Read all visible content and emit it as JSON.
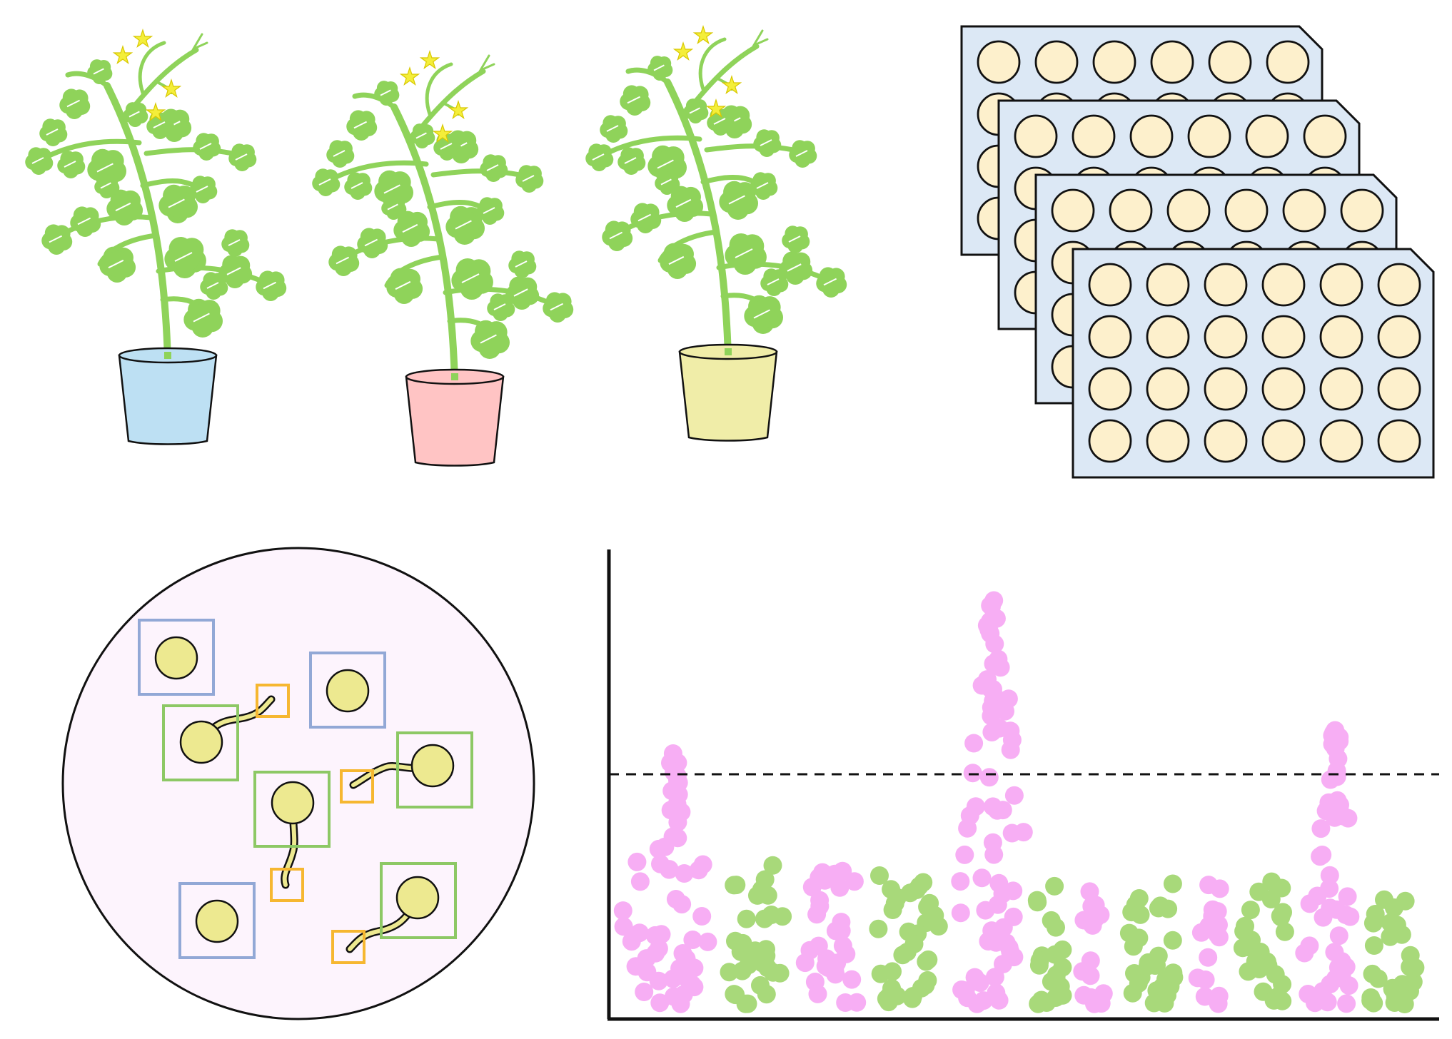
{
  "colors": {
    "stem": "#8fd35a",
    "leaf": "#8fd35a",
    "flower": "#f4ee3a",
    "flower_outline": "#d8c800",
    "pot_blue": "#bde0f3",
    "pot_pink": "#ffc4c4",
    "pot_yellow": "#f0eda8",
    "plate_fill": "#dce8f5",
    "well_fill": "#fdf0cc",
    "dish_fill": "#fdf4fd",
    "cell_fill": "#ede990",
    "box_blue": "#92a8d6",
    "box_green": "#8dc865",
    "box_orange": "#f6b731",
    "tube_fill": "#ede990",
    "point_pink": "#f7aef4",
    "point_green": "#a8d97a",
    "outline": "#111111"
  },
  "plants": [
    {
      "name": "plant-blue-pot",
      "pot": "pot_blue"
    },
    {
      "name": "plant-pink-pot",
      "pot": "pot_pink"
    },
    {
      "name": "plant-yellow-pot",
      "pot": "pot_yellow"
    }
  ],
  "plates": {
    "count": 4,
    "rows": 4,
    "cols": 6
  },
  "dish": {
    "cells": [
      {
        "kind": "ungerminated",
        "box": "box_blue"
      },
      {
        "kind": "ungerminated",
        "box": "box_blue"
      },
      {
        "kind": "ungerminated",
        "box": "box_blue"
      },
      {
        "kind": "germinated",
        "box": "box_green",
        "tip": "box_orange"
      },
      {
        "kind": "germinated",
        "box": "box_green",
        "tip": "box_orange"
      },
      {
        "kind": "germinated",
        "box": "box_green",
        "tip": "box_orange"
      },
      {
        "kind": "germinated",
        "box": "box_green",
        "tip": "box_orange"
      }
    ]
  },
  "chart_data": {
    "type": "scatter",
    "title": "",
    "xlabel": "",
    "ylabel": "",
    "x_ticks": [],
    "y_ticks": [],
    "threshold_line": {
      "style": "dashed",
      "y": 0.62
    },
    "ylim": [
      0,
      1
    ],
    "groups": [
      {
        "color": "point_pink",
        "x_range": [
          0.0,
          0.13
        ],
        "baseline_top": 0.38,
        "peak": 0.56
      },
      {
        "color": "point_green",
        "x_range": [
          0.13,
          0.22
        ],
        "baseline_top": 0.32,
        "peak": 0.32
      },
      {
        "color": "point_pink",
        "x_range": [
          0.22,
          0.31
        ],
        "baseline_top": 0.31,
        "peak": 0.31
      },
      {
        "color": "point_green",
        "x_range": [
          0.31,
          0.41
        ],
        "baseline_top": 0.3,
        "peak": 0.3
      },
      {
        "color": "point_pink",
        "x_range": [
          0.41,
          0.5
        ],
        "baseline_top": 0.35,
        "peak": 0.89
      },
      {
        "color": "point_green",
        "x_range": [
          0.5,
          0.56
        ],
        "baseline_top": 0.3,
        "peak": 0.3
      },
      {
        "color": "point_pink",
        "x_range": [
          0.56,
          0.61
        ],
        "baseline_top": 0.27,
        "peak": 0.27
      },
      {
        "color": "point_green",
        "x_range": [
          0.61,
          0.7
        ],
        "baseline_top": 0.28,
        "peak": 0.28
      },
      {
        "color": "point_pink",
        "x_range": [
          0.7,
          0.75
        ],
        "baseline_top": 0.28,
        "peak": 0.28
      },
      {
        "color": "point_green",
        "x_range": [
          0.75,
          0.83
        ],
        "baseline_top": 0.3,
        "peak": 0.3
      },
      {
        "color": "point_pink",
        "x_range": [
          0.83,
          0.91
        ],
        "baseline_top": 0.31,
        "peak": 0.61
      },
      {
        "color": "point_green",
        "x_range": [
          0.91,
          0.99
        ],
        "baseline_top": 0.28,
        "peak": 0.28
      }
    ]
  }
}
